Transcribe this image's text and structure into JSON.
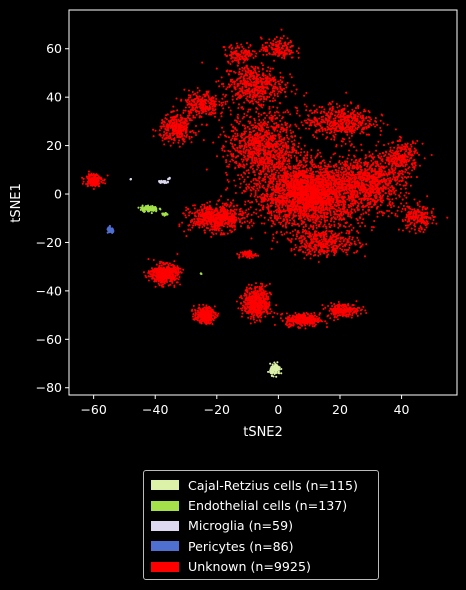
{
  "chart_data": {
    "type": "scatter",
    "xlabel": "tSNE2",
    "ylabel": "tSNE1",
    "xlim": [
      -68,
      58
    ],
    "ylim": [
      -83,
      76
    ],
    "xticks": [
      -60,
      -40,
      -20,
      0,
      20,
      40
    ],
    "yticks": [
      -80,
      -60,
      -40,
      -20,
      0,
      20,
      40,
      60
    ],
    "legend_position": "below",
    "series": [
      {
        "name": "Cajal-Retzius cells (n=115)",
        "n": 115,
        "color": "#dbf2a8",
        "clusters": [
          {
            "center": [
              -1,
              -72.5
            ],
            "spread": [
              1.5,
              2.0
            ],
            "count": 110
          }
        ]
      },
      {
        "name": "Endothelial cells (n=137)",
        "n": 137,
        "color": "#a3e04a",
        "clusters": [
          {
            "center": [
              -42,
              -6
            ],
            "spread": [
              2.6,
              1.1
            ],
            "count": 120
          },
          {
            "center": [
              -37,
              -8.5
            ],
            "spread": [
              1.0,
              0.6
            ],
            "count": 12
          },
          {
            "center": [
              -25,
              -33
            ],
            "spread": [
              0.3,
              0.3
            ],
            "count": 3
          }
        ]
      },
      {
        "name": "Microglia (n=59)",
        "n": 59,
        "color": "#dcd9f0",
        "clusters": [
          {
            "center": [
              -37.5,
              5
            ],
            "spread": [
              1.3,
              0.5
            ],
            "count": 45
          },
          {
            "center": [
              -35.5,
              6.5
            ],
            "spread": [
              0.4,
              0.4
            ],
            "count": 8
          },
          {
            "center": [
              -48,
              6
            ],
            "spread": [
              0.2,
              0.2
            ],
            "count": 4
          }
        ]
      },
      {
        "name": "Pericytes (n=86)",
        "n": 86,
        "color": "#4f6fd1",
        "clusters": [
          {
            "center": [
              -54.5,
              -15
            ],
            "spread": [
              1.0,
              1.0
            ],
            "count": 80
          }
        ]
      },
      {
        "name": "Unknown (n=9925)",
        "n": 9925,
        "color": "#ff0000",
        "clusters": [
          {
            "center": [
              10,
              0
            ],
            "spread": [
              16,
              12
            ],
            "count": 2600
          },
          {
            "center": [
              -5,
              20
            ],
            "spread": [
              10,
              12
            ],
            "count": 900
          },
          {
            "center": [
              -8,
              45
            ],
            "spread": [
              9,
              8
            ],
            "count": 500
          },
          {
            "center": [
              0,
              60
            ],
            "spread": [
              5,
              4
            ],
            "count": 150
          },
          {
            "center": [
              -12,
              58
            ],
            "spread": [
              5,
              3.5
            ],
            "count": 120
          },
          {
            "center": [
              -25,
              37
            ],
            "spread": [
              5,
              5
            ],
            "count": 250
          },
          {
            "center": [
              -33,
              27
            ],
            "spread": [
              5,
              5
            ],
            "count": 300
          },
          {
            "center": [
              -20,
              -10
            ],
            "spread": [
              8,
              5
            ],
            "count": 600
          },
          {
            "center": [
              30,
              5
            ],
            "spread": [
              10,
              10
            ],
            "count": 800
          },
          {
            "center": [
              40,
              15
            ],
            "spread": [
              5,
              6
            ],
            "count": 250
          },
          {
            "center": [
              45,
              -10
            ],
            "spread": [
              5,
              5
            ],
            "count": 200
          },
          {
            "center": [
              15,
              -20
            ],
            "spread": [
              10,
              5
            ],
            "count": 400
          },
          {
            "center": [
              -60,
              6
            ],
            "spread": [
              2.5,
              2.5
            ],
            "count": 170
          },
          {
            "center": [
              -37,
              -33
            ],
            "spread": [
              4,
              3.5
            ],
            "count": 500
          },
          {
            "center": [
              -24,
              -50
            ],
            "spread": [
              3,
              3
            ],
            "count": 250
          },
          {
            "center": [
              -7,
              -45
            ],
            "spread": [
              4,
              6
            ],
            "count": 500
          },
          {
            "center": [
              8,
              -52
            ],
            "spread": [
              5,
              2.5
            ],
            "count": 300
          },
          {
            "center": [
              21,
              -48
            ],
            "spread": [
              5,
              2.5
            ],
            "count": 200
          },
          {
            "center": [
              -10,
              -25
            ],
            "spread": [
              2.5,
              1.5
            ],
            "count": 60
          },
          {
            "center": [
              20,
              30
            ],
            "spread": [
              10,
              6
            ],
            "count": 500
          }
        ]
      }
    ]
  }
}
